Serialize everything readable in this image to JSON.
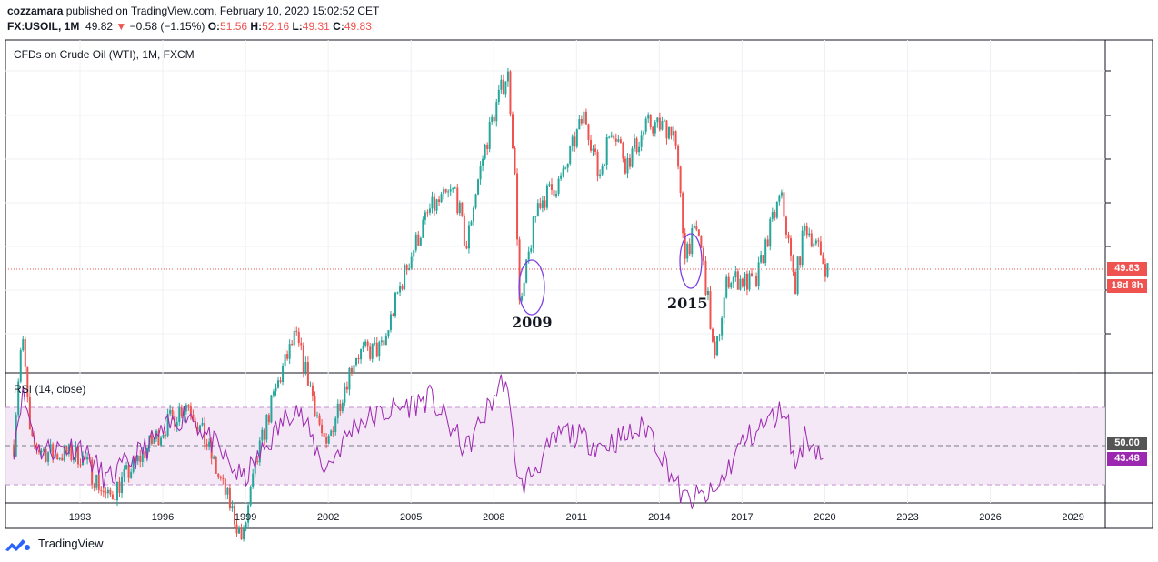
{
  "header": {
    "author": "cozzamara",
    "published": " published on TradingView.com, February 10, 2020 15:02:52 CET",
    "symbol": "FX:USOIL, 1M",
    "last": "49.82",
    "arrow": "▼",
    "change": "−0.58 (−1.15%)",
    "o_label": "O:",
    "o": "51.56",
    "h_label": "H:",
    "h": "52.16",
    "l_label": "L:",
    "l": "49.31",
    "c_label": "C:",
    "c": "49.83"
  },
  "chart_data": [
    {
      "type": "candlestick",
      "title": "CFDs on Crude Oil (WTI), 1M, FXCM",
      "x_ticks": [
        "1993",
        "1996",
        "1999",
        "2002",
        "2005",
        "2008",
        "2011",
        "2014",
        "2017",
        "2020",
        "2023",
        "2026",
        "2029"
      ],
      "last_price_label": "49.83",
      "countdown_label": "18d 8h",
      "approx_monthly_close_path": [
        {
          "date": "1990.6",
          "price": 20
        },
        {
          "date": "1990.9",
          "price": 35
        },
        {
          "date": "1991.2",
          "price": 20
        },
        {
          "date": "1992.0",
          "price": 19
        },
        {
          "date": "1993.0",
          "price": 19
        },
        {
          "date": "1994.0",
          "price": 15
        },
        {
          "date": "1995.0",
          "price": 18
        },
        {
          "date": "1996.9",
          "price": 25
        },
        {
          "date": "1998.0",
          "price": 17
        },
        {
          "date": "1998.9",
          "price": 12
        },
        {
          "date": "2000.8",
          "price": 35
        },
        {
          "date": "2001.9",
          "price": 19
        },
        {
          "date": "2003.0",
          "price": 32
        },
        {
          "date": "2004.0",
          "price": 33
        },
        {
          "date": "2005.7",
          "price": 68
        },
        {
          "date": "2006.6",
          "price": 75
        },
        {
          "date": "2007.0",
          "price": 55
        },
        {
          "date": "2008.5",
          "price": 140
        },
        {
          "date": "2008.95",
          "price": 38
        },
        {
          "date": "2009.6",
          "price": 70
        },
        {
          "date": "2010.5",
          "price": 80
        },
        {
          "date": "2011.3",
          "price": 112
        },
        {
          "date": "2011.8",
          "price": 80
        },
        {
          "date": "2012.3",
          "price": 106
        },
        {
          "date": "2012.8",
          "price": 86
        },
        {
          "date": "2013.6",
          "price": 106
        },
        {
          "date": "2014.5",
          "price": 104
        },
        {
          "date": "2014.9",
          "price": 55
        },
        {
          "date": "2015.4",
          "price": 61
        },
        {
          "date": "2016.0",
          "price": 30
        },
        {
          "date": "2016.5",
          "price": 48
        },
        {
          "date": "2017.5",
          "price": 46
        },
        {
          "date": "2018.4",
          "price": 73
        },
        {
          "date": "2018.9",
          "price": 45
        },
        {
          "date": "2019.3",
          "price": 63
        },
        {
          "date": "2020.0",
          "price": 51
        },
        {
          "date": "2020.1",
          "price": 49.83
        }
      ],
      "annotations": [
        "2009",
        "2015"
      ]
    },
    {
      "type": "line",
      "title": "RSI (14, close)",
      "levels": [
        70,
        50,
        30
      ],
      "value_label": "43.48",
      "midline_label": "50.00",
      "approx_path": [
        {
          "date": "1990.6",
          "rsi": 50
        },
        {
          "date": "1990.9",
          "rsi": 78
        },
        {
          "date": "1991.5",
          "rsi": 48
        },
        {
          "date": "1993.0",
          "rsi": 50
        },
        {
          "date": "1994.0",
          "rsi": 32
        },
        {
          "date": "1996.9",
          "rsi": 68
        },
        {
          "date": "1998.9",
          "rsi": 32
        },
        {
          "date": "2000.8",
          "rsi": 72
        },
        {
          "date": "2001.9",
          "rsi": 38
        },
        {
          "date": "2003.0",
          "rsi": 62
        },
        {
          "date": "2005.7",
          "rsi": 75
        },
        {
          "date": "2007.0",
          "rsi": 48
        },
        {
          "date": "2008.4",
          "rsi": 86
        },
        {
          "date": "2008.95",
          "rsi": 28
        },
        {
          "date": "2010.5",
          "rsi": 58
        },
        {
          "date": "2011.9",
          "rsi": 50
        },
        {
          "date": "2013.6",
          "rsi": 60
        },
        {
          "date": "2014.9",
          "rsi": 22
        },
        {
          "date": "2016.0",
          "rsi": 25
        },
        {
          "date": "2017.0",
          "rsi": 52
        },
        {
          "date": "2018.6",
          "rsi": 70
        },
        {
          "date": "2018.9",
          "rsi": 38
        },
        {
          "date": "2019.3",
          "rsi": 56
        },
        {
          "date": "2020.0",
          "rsi": 43.48
        }
      ]
    }
  ],
  "footer": {
    "brand": "TradingView"
  },
  "colors": {
    "up": "#26a69a",
    "down": "#ef5350",
    "rsi": "#9c27b0",
    "band": "#f3e5f5",
    "price_line": "#ef5350"
  }
}
